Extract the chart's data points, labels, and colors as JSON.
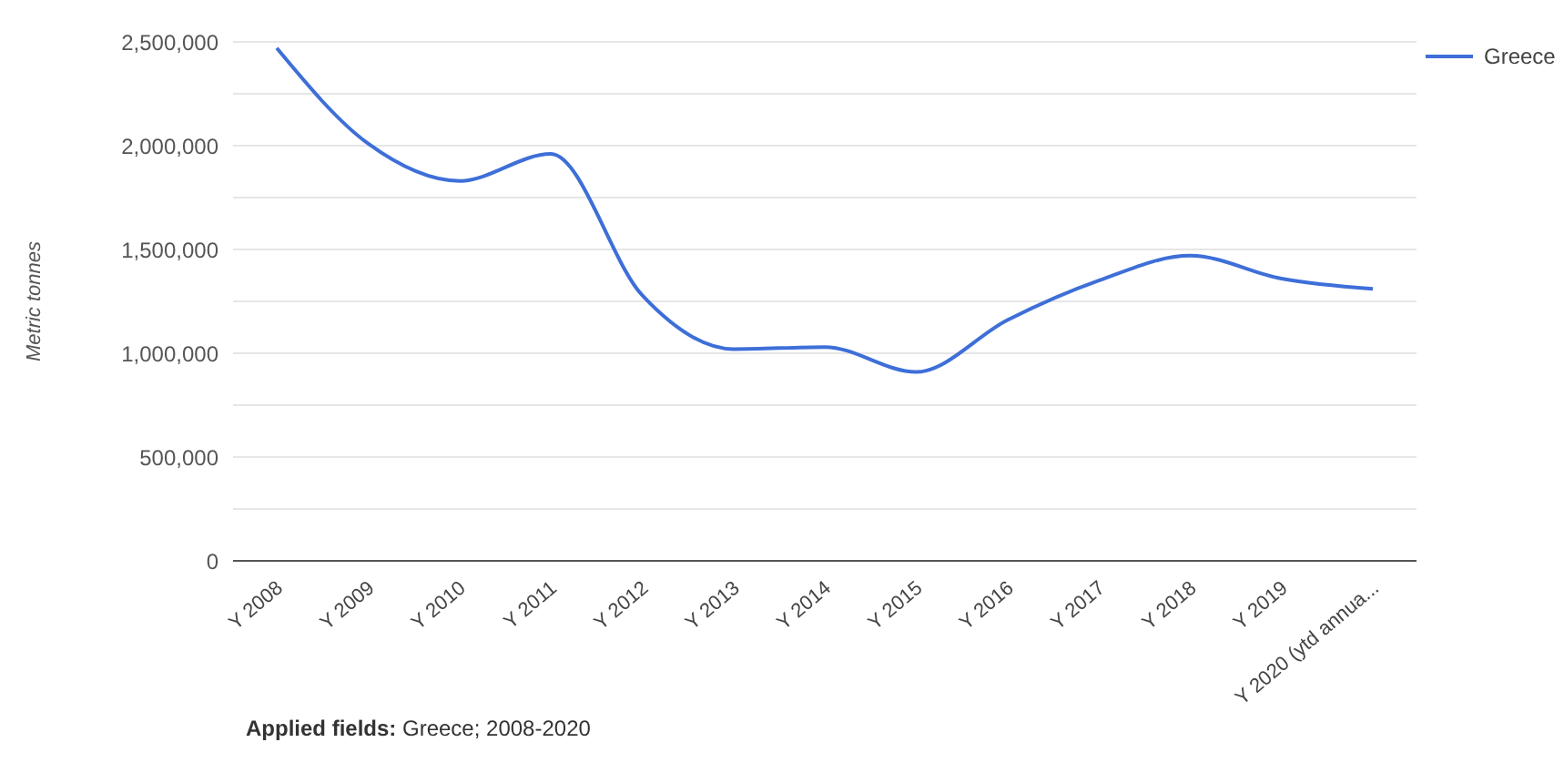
{
  "chart_data": {
    "type": "line",
    "ylabel": "Metric tonnes",
    "categories": [
      "Y 2008",
      "Y 2009",
      "Y 2010",
      "Y 2011",
      "Y 2012",
      "Y 2013",
      "Y 2014",
      "Y 2015",
      "Y 2016",
      "Y 2017",
      "Y 2018",
      "Y 2019",
      "Y 2020 (ytd annua..."
    ],
    "series": [
      {
        "name": "Greece",
        "color": "#3e6fd8",
        "values": [
          2470000,
          2010000,
          1830000,
          1960000,
          1280000,
          1020000,
          1030000,
          910000,
          1160000,
          1350000,
          1470000,
          1360000,
          1310000
        ]
      }
    ],
    "ylim": [
      0,
      2500000
    ],
    "yticks": [
      0,
      {
        "value": 250000,
        "label": null
      },
      {
        "value": 500000,
        "label": "500,000"
      },
      {
        "value": 750000,
        "label": null
      },
      {
        "value": 1000000,
        "label": "1,000,000"
      },
      {
        "value": 1250000,
        "label": null
      },
      {
        "value": 1500000,
        "label": "1,500,000"
      },
      {
        "value": 1750000,
        "label": null
      },
      {
        "value": 2000000,
        "label": "2,000,000"
      },
      {
        "value": 2250000,
        "label": null
      },
      {
        "value": 2500000,
        "label": "2,500,000"
      }
    ],
    "grid": "y",
    "legend": "top right",
    "marker": "none",
    "line_style": "solid",
    "annotations": [
      "Applied fields: Greece; 2008-2020"
    ]
  }
}
